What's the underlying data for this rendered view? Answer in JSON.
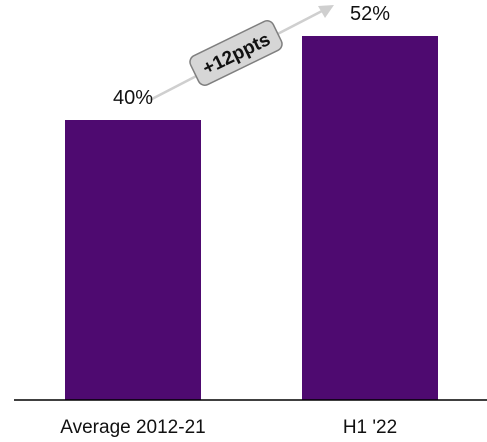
{
  "chart_data": {
    "type": "bar",
    "categories": [
      "Average 2012-21",
      "H1 '22"
    ],
    "values": [
      40,
      52
    ],
    "value_labels": [
      "40%",
      "52%"
    ],
    "unit": "%",
    "ylim": [
      0,
      55
    ],
    "grid": false,
    "legend": "none",
    "annotation": {
      "text": "+12ppts",
      "from": "Average 2012-21",
      "to": "H1 '22"
    },
    "colors": {
      "bar": "#4E0A70",
      "arrow": "#CFCFCF",
      "badge_fill": "#D6D6D6",
      "badge_stroke": "#7F7F7F",
      "axis": "#000000"
    }
  }
}
